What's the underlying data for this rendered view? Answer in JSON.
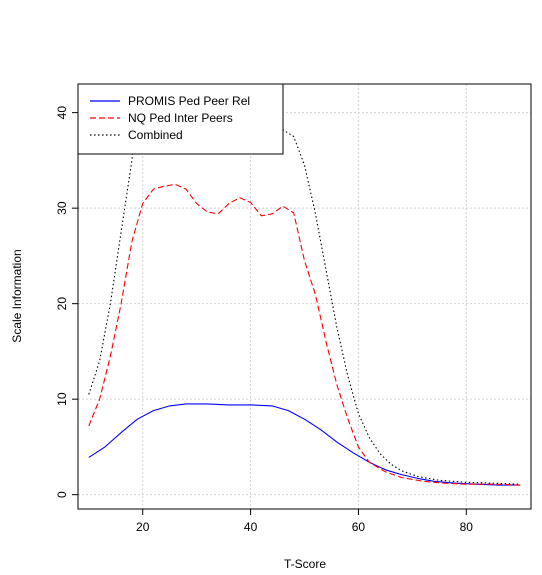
{
  "chart_data": {
    "type": "line",
    "title": "",
    "xlabel": "T-Score",
    "ylabel": "Scale Information",
    "xlim": [
      8,
      92
    ],
    "ylim": [
      -1.5,
      43
    ],
    "x_ticks": [
      20,
      40,
      60,
      80
    ],
    "y_ticks": [
      0,
      10,
      20,
      30,
      40
    ],
    "x_tick_labels": [
      "20",
      "40",
      "60",
      "80"
    ],
    "y_tick_labels": [
      "0",
      "10",
      "20",
      "30",
      "40"
    ],
    "grid": true,
    "legend_position": "top-left",
    "series": [
      {
        "name": "PROMIS Ped Peer Rel",
        "color": "#0000ff",
        "dash": "solid",
        "points": [
          [
            10,
            3.9
          ],
          [
            13,
            5.0
          ],
          [
            16,
            6.5
          ],
          [
            19,
            7.9
          ],
          [
            22,
            8.8
          ],
          [
            25,
            9.3
          ],
          [
            28,
            9.5
          ],
          [
            32,
            9.5
          ],
          [
            36,
            9.4
          ],
          [
            40,
            9.4
          ],
          [
            44,
            9.3
          ],
          [
            47,
            8.8
          ],
          [
            50,
            7.9
          ],
          [
            53,
            6.8
          ],
          [
            56,
            5.5
          ],
          [
            59,
            4.4
          ],
          [
            62,
            3.4
          ],
          [
            65,
            2.6
          ],
          [
            68,
            2.1
          ],
          [
            71,
            1.7
          ],
          [
            74,
            1.4
          ],
          [
            78,
            1.2
          ],
          [
            82,
            1.1
          ],
          [
            86,
            1.0
          ],
          [
            90,
            1.0
          ]
        ]
      },
      {
        "name": "NQ Ped Inter Peers",
        "color": "#ff0000",
        "dash": "dashed",
        "points": [
          [
            10,
            7.2
          ],
          [
            12,
            10.0
          ],
          [
            14,
            14.5
          ],
          [
            16,
            20.0
          ],
          [
            18,
            26.5
          ],
          [
            20,
            30.5
          ],
          [
            22,
            32.0
          ],
          [
            24,
            32.3
          ],
          [
            26,
            32.5
          ],
          [
            28,
            32.0
          ],
          [
            30,
            30.5
          ],
          [
            32,
            29.6
          ],
          [
            34,
            29.4
          ],
          [
            36,
            30.5
          ],
          [
            38,
            31.1
          ],
          [
            40,
            30.6
          ],
          [
            42,
            29.2
          ],
          [
            44,
            29.4
          ],
          [
            46,
            30.2
          ],
          [
            48,
            29.5
          ],
          [
            50,
            24.5
          ],
          [
            52,
            21.0
          ],
          [
            54,
            16.0
          ],
          [
            56,
            11.5
          ],
          [
            58,
            8.0
          ],
          [
            60,
            5.0
          ],
          [
            62,
            3.4
          ],
          [
            65,
            2.4
          ],
          [
            68,
            1.8
          ],
          [
            72,
            1.4
          ],
          [
            76,
            1.2
          ],
          [
            80,
            1.1
          ],
          [
            85,
            1.1
          ],
          [
            90,
            1.0
          ]
        ]
      },
      {
        "name": "Combined",
        "color": "#000000",
        "dash": "dotted",
        "points": [
          [
            10,
            10.5
          ],
          [
            12,
            14.0
          ],
          [
            14,
            20.0
          ],
          [
            16,
            27.5
          ],
          [
            18,
            35.0
          ],
          [
            19,
            40.5
          ],
          [
            21,
            43.0
          ],
          [
            40,
            43.0
          ],
          [
            42,
            38.7
          ],
          [
            44,
            37.7
          ],
          [
            46,
            38.2
          ],
          [
            48,
            37.5
          ],
          [
            50,
            34.5
          ],
          [
            52,
            29.5
          ],
          [
            54,
            23.5
          ],
          [
            56,
            17.5
          ],
          [
            58,
            12.5
          ],
          [
            60,
            8.5
          ],
          [
            62,
            6.0
          ],
          [
            64,
            4.3
          ],
          [
            66,
            3.2
          ],
          [
            68,
            2.5
          ],
          [
            71,
            1.9
          ],
          [
            75,
            1.5
          ],
          [
            80,
            1.3
          ],
          [
            85,
            1.2
          ],
          [
            90,
            1.1
          ]
        ]
      }
    ]
  }
}
